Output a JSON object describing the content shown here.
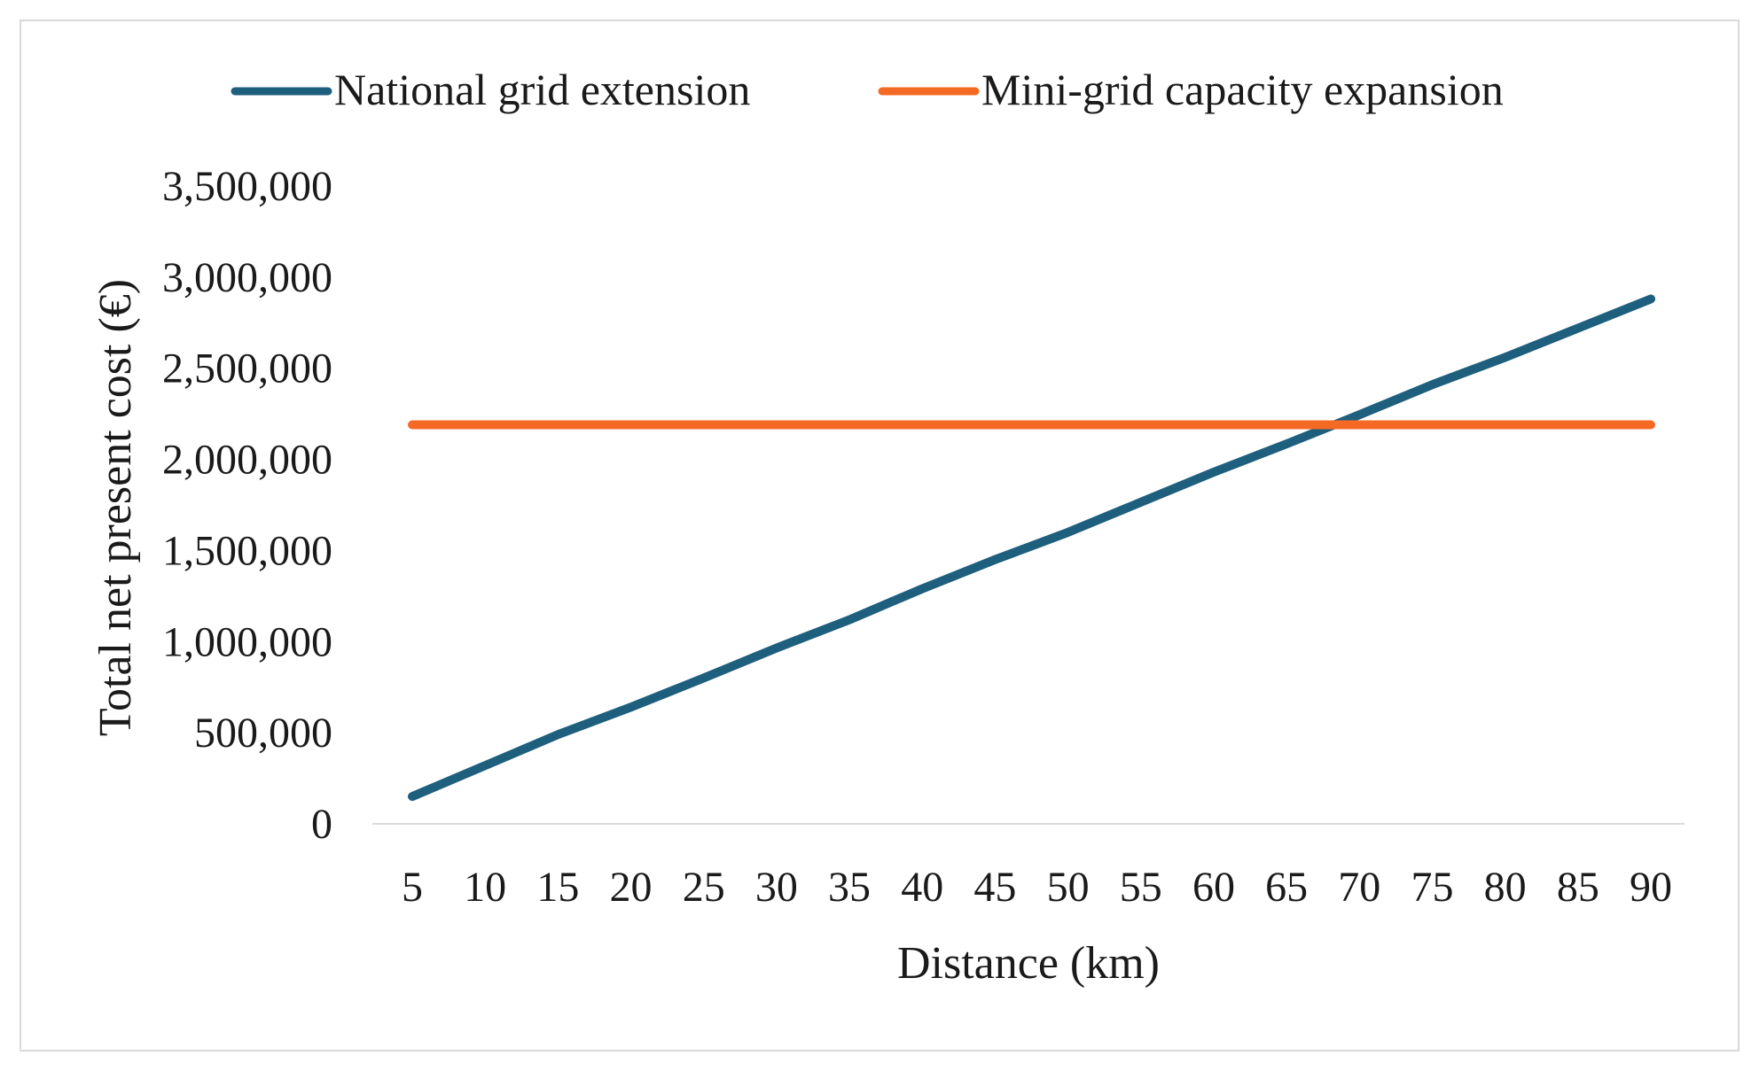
{
  "chart_data": {
    "type": "line",
    "title": "",
    "xlabel": "Distance (km)",
    "ylabel": "Total net present cost (€)",
    "x": [
      5,
      10,
      15,
      20,
      25,
      30,
      35,
      40,
      45,
      50,
      55,
      60,
      65,
      70,
      75,
      80,
      85,
      90
    ],
    "x_tick_labels": [
      "5",
      "10",
      "15",
      "20",
      "25",
      "30",
      "35",
      "40",
      "45",
      "50",
      "55",
      "60",
      "65",
      "70",
      "75",
      "80",
      "85",
      "90"
    ],
    "ylim": [
      0,
      3500000
    ],
    "y_ticks": [
      0,
      500000,
      1000000,
      1500000,
      2000000,
      2500000,
      3000000,
      3500000
    ],
    "y_tick_labels": [
      "0",
      "500,000",
      "1,000,000",
      "1,500,000",
      "2,000,000",
      "2,500,000",
      "3,000,000",
      "3,500,000"
    ],
    "grid": false,
    "legend_position": "top",
    "series": [
      {
        "name": "National grid extension",
        "color": "#1f5f7e",
        "values": [
          150000,
          320000,
          490000,
          640000,
          800000,
          965000,
          1120000,
          1290000,
          1450000,
          1600000,
          1765000,
          1930000,
          2085000,
          2245000,
          2410000,
          2560000,
          2720000,
          2880000
        ]
      },
      {
        "name": "Mini-grid capacity expansion",
        "color": "#f46a25",
        "values": [
          2190000,
          2190000,
          2190000,
          2190000,
          2190000,
          2190000,
          2190000,
          2190000,
          2190000,
          2190000,
          2190000,
          2190000,
          2190000,
          2190000,
          2190000,
          2190000,
          2190000,
          2190000
        ]
      }
    ]
  }
}
